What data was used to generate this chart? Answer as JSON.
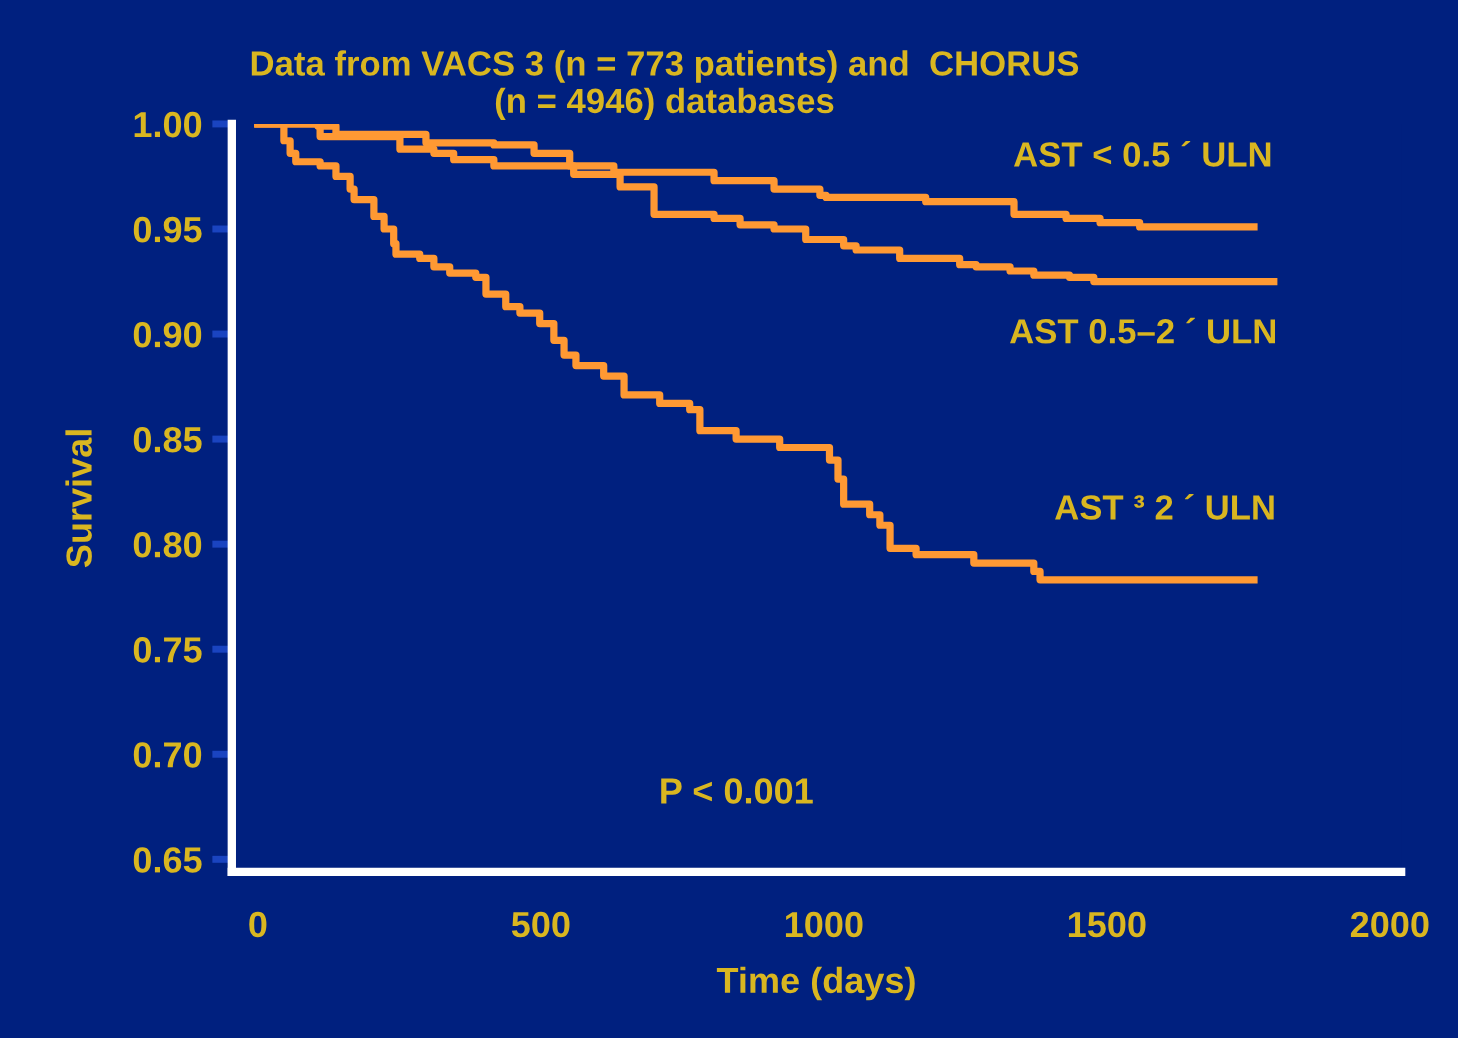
{
  "chart_data": {
    "type": "step",
    "title": "Data from VACS 3 (n = 773 patients) and  CHORUS\n(n = 4946) databases",
    "xlabel": "Time (days)",
    "ylabel": "Survival",
    "xlim": [
      -46,
      2020
    ],
    "xticks": [
      0,
      500,
      1000,
      1500,
      2000
    ],
    "ylim": [
      0.644,
      1.0
    ],
    "yticks": [
      {
        "value": 0.65,
        "label": "0.65"
      },
      {
        "value": 0.7,
        "label": "0.70"
      },
      {
        "value": 0.75,
        "label": "0.75"
      },
      {
        "value": 0.8,
        "label": "0.80"
      },
      {
        "value": 0.85,
        "label": "0.85"
      },
      {
        "value": 0.9,
        "label": "0.90"
      },
      {
        "value": 0.95,
        "label": "0.95"
      },
      {
        "value": 1.0,
        "label": "1.00"
      }
    ],
    "grid": false,
    "legend": false,
    "marker": "none",
    "line_style": "solid",
    "annotations": [
      "P < 0.001"
    ],
    "series": [
      {
        "name": "AST < 0.5 ´ ULN",
        "color": "#ff9933",
        "x": [
          0,
          106,
          138,
          297,
          417,
          488,
          551,
          629,
          806,
          912,
          993,
          1004,
          1180,
          1336,
          1428,
          1488,
          1558,
          1760
        ],
        "values": [
          1.0,
          0.999,
          0.995,
          0.991,
          0.99,
          0.986,
          0.98,
          0.977,
          0.973,
          0.969,
          0.966,
          0.965,
          0.963,
          0.957,
          0.955,
          0.953,
          0.951,
          0.951
        ]
      },
      {
        "name": "AST 0.5–2 ´ ULN",
        "color": "#ff9933",
        "x": [
          0,
          110,
          251,
          311,
          346,
          417,
          558,
          640,
          700,
          806,
          852,
          912,
          968,
          1035,
          1057,
          1134,
          1240,
          1269,
          1329,
          1371,
          1434,
          1477,
          1795
        ],
        "values": [
          1.0,
          0.994,
          0.988,
          0.986,
          0.983,
          0.98,
          0.976,
          0.97,
          0.957,
          0.955,
          0.952,
          0.95,
          0.945,
          0.942,
          0.94,
          0.936,
          0.933,
          0.932,
          0.93,
          0.928,
          0.927,
          0.925,
          0.925
        ]
      },
      {
        "name": "AST ³ 2 ´ ULN",
        "color": "#ff9933",
        "x": [
          0,
          46,
          57,
          67,
          110,
          138,
          163,
          170,
          205,
          223,
          240,
          244,
          286,
          311,
          339,
          385,
          403,
          438,
          463,
          498,
          523,
          541,
          562,
          611,
          647,
          710,
          763,
          781,
          845,
          922,
          1010,
          1025,
          1035,
          1081,
          1099,
          1117,
          1163,
          1265,
          1371,
          1382,
          1760
        ],
        "values": [
          1.0,
          0.992,
          0.986,
          0.982,
          0.98,
          0.975,
          0.969,
          0.964,
          0.956,
          0.95,
          0.943,
          0.938,
          0.936,
          0.932,
          0.929,
          0.927,
          0.919,
          0.913,
          0.91,
          0.905,
          0.897,
          0.89,
          0.885,
          0.88,
          0.871,
          0.867,
          0.864,
          0.854,
          0.85,
          0.846,
          0.84,
          0.831,
          0.819,
          0.814,
          0.809,
          0.798,
          0.795,
          0.791,
          0.787,
          0.783,
          0.783
        ]
      }
    ]
  }
}
